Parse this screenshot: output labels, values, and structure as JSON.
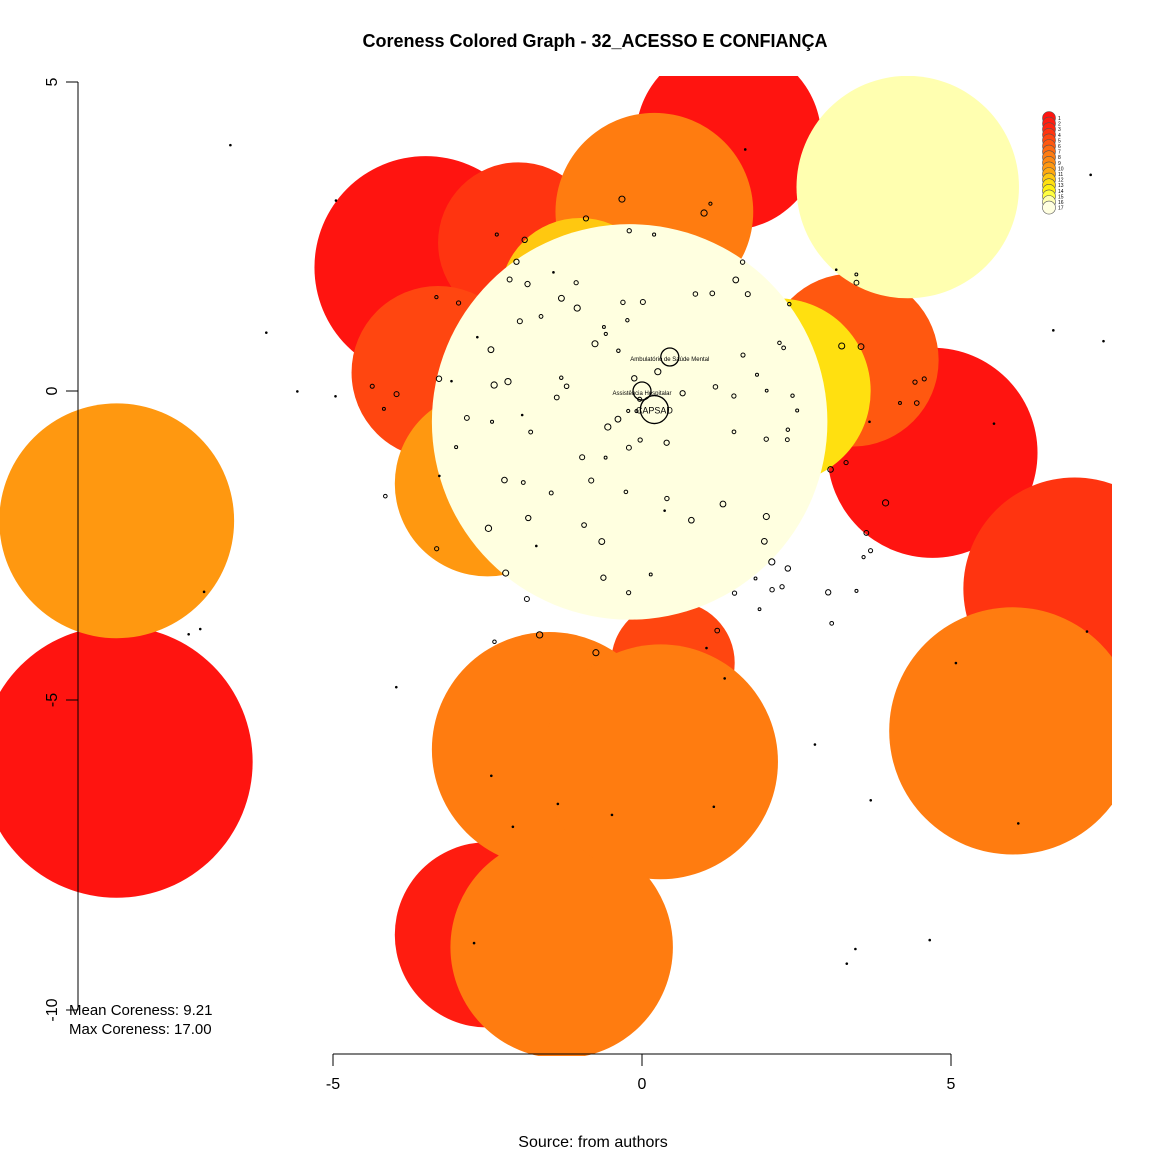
{
  "chart_data": {
    "type": "scatter",
    "title": "Coreness Colored Graph - 32_ACESSO E CONFIANÇA",
    "xlabel": "",
    "ylabel": "",
    "xlim": [
      -5,
      5
    ],
    "ylim": [
      -10,
      5
    ],
    "x_ticks": [
      "-5",
      "0",
      "5"
    ],
    "y_ticks": [
      "5",
      "0",
      "-5",
      "-10"
    ],
    "caption": "Source: from authors",
    "stats": {
      "mean_label": "Mean Coreness: 9.21",
      "max_label": "Max Coreness: 17.00",
      "mean": 9.21,
      "max": 17.0
    },
    "legend": {
      "position": "top-right",
      "levels": [
        1,
        2,
        3,
        4,
        5,
        6,
        7,
        8,
        9,
        10,
        11,
        12,
        13,
        14,
        15,
        16,
        17
      ]
    },
    "palette": [
      "#ff1410",
      "#ff1c10",
      "#ff2410",
      "#ff3410",
      "#ff4610",
      "#ff5810",
      "#ff6a10",
      "#ff7c10",
      "#ff8810",
      "#ff9810",
      "#ffa810",
      "#ffc810",
      "#ffe010",
      "#fff010",
      "#ffff40",
      "#ffffb0",
      "#ffffe0"
    ],
    "hubs": [
      {
        "label": "CAPSAD",
        "x": 0.2,
        "y": -0.3,
        "coreness": 17
      },
      {
        "label": "Assistência Hospitalar",
        "x": 0.0,
        "y": 0.0,
        "coreness": 17
      },
      {
        "label": "Ambulatório de Saúde Mental",
        "x": 0.45,
        "y": 0.55,
        "coreness": 17
      }
    ],
    "regions": [
      {
        "coreness": 1,
        "x": -8.5,
        "y": -6.0,
        "r": 2.2
      },
      {
        "coreness": 1,
        "x": -3.5,
        "y": 2.0,
        "r": 1.8
      },
      {
        "coreness": 1,
        "x": 1.4,
        "y": 4.1,
        "r": 1.5
      },
      {
        "coreness": 1,
        "x": 4.7,
        "y": -1.0,
        "r": 1.7
      },
      {
        "coreness": 2,
        "x": -2.5,
        "y": -8.8,
        "r": 1.5
      },
      {
        "coreness": 4,
        "x": 7.0,
        "y": -3.2,
        "r": 1.8
      },
      {
        "coreness": 4,
        "x": -2.0,
        "y": 2.4,
        "r": 1.3
      },
      {
        "coreness": 5,
        "x": -3.3,
        "y": 0.3,
        "r": 1.4
      },
      {
        "coreness": 5,
        "x": 0.5,
        "y": -4.4,
        "r": 1.0
      },
      {
        "coreness": 5,
        "x": -0.9,
        "y": -6.8,
        "r": 1.4
      },
      {
        "coreness": 6,
        "x": 3.4,
        "y": 0.5,
        "r": 1.4
      },
      {
        "coreness": 8,
        "x": -1.3,
        "y": -9.0,
        "r": 1.8
      },
      {
        "coreness": 8,
        "x": 6.0,
        "y": -5.5,
        "r": 2.0
      },
      {
        "coreness": 8,
        "x": -1.5,
        "y": -5.8,
        "r": 1.9
      },
      {
        "coreness": 8,
        "x": 0.3,
        "y": -6.0,
        "r": 1.9
      },
      {
        "coreness": 8,
        "x": 0.2,
        "y": 2.9,
        "r": 1.6
      },
      {
        "coreness": 10,
        "x": -8.5,
        "y": -2.1,
        "r": 1.9
      },
      {
        "coreness": 10,
        "x": -2.5,
        "y": -1.5,
        "r": 1.5
      },
      {
        "coreness": 12,
        "x": -1.0,
        "y": 1.5,
        "r": 1.3
      },
      {
        "coreness": 13,
        "x": 2.2,
        "y": 0.0,
        "r": 1.5
      },
      {
        "coreness": 13,
        "x": -0.9,
        "y": -2.2,
        "r": 1.3
      },
      {
        "coreness": 16,
        "x": 4.3,
        "y": 3.3,
        "r": 1.8
      },
      {
        "coreness": 17,
        "x": -0.2,
        "y": -0.5,
        "r": 3.2
      }
    ]
  }
}
